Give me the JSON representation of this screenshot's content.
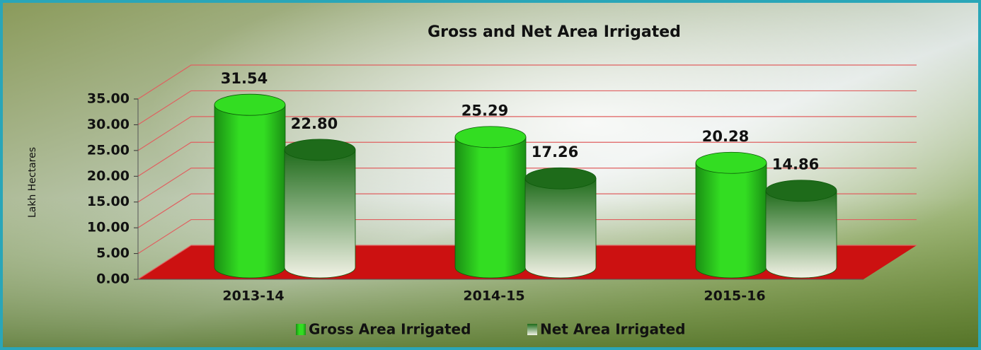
{
  "chart_data": {
    "type": "bar3d",
    "title": "Gross and Net Area Irrigated",
    "y_label": "Lakh Hectares",
    "categories": [
      "2013-14",
      "2014-15",
      "2015-16"
    ],
    "series": [
      {
        "name": "Gross Area Irrigated",
        "color": "#33dd22",
        "values": [
          31.54,
          25.29,
          20.28
        ],
        "value_labels": [
          "31.54",
          "25.29",
          "20.28"
        ]
      },
      {
        "name": "Net Area Irrigated",
        "color": "#1e6b1a",
        "values": [
          22.8,
          17.26,
          14.86
        ],
        "value_labels": [
          "22.80",
          "17.26",
          "14.86"
        ]
      }
    ],
    "ylim": [
      0,
      35
    ],
    "yticks": [
      {
        "value": 0,
        "label": "0.00"
      },
      {
        "value": 5,
        "label": "5.00"
      },
      {
        "value": 10,
        "label": "10.00"
      },
      {
        "value": 15,
        "label": "15.00"
      },
      {
        "value": 20,
        "label": "20.00"
      },
      {
        "value": 25,
        "label": "25.00"
      },
      {
        "value": 30,
        "label": "30.00"
      },
      {
        "value": 35,
        "label": "35.00"
      }
    ],
    "grid": true,
    "floor_color": "#cc1111",
    "legend": "bottom"
  }
}
